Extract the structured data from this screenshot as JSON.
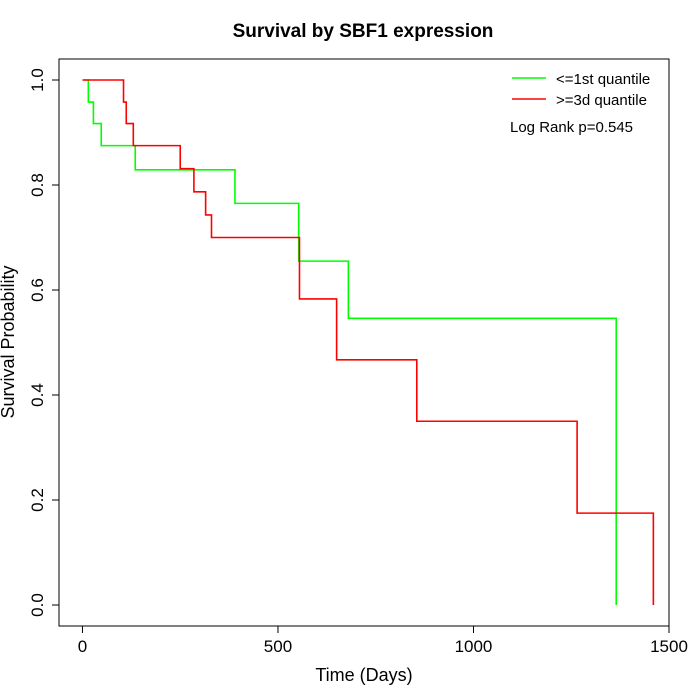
{
  "chart_data": {
    "type": "line",
    "step": true,
    "title": "Survival by SBF1 expression",
    "xlabel": "Time (Days)",
    "ylabel": "Survival Probability",
    "xlim": [
      -60,
      1500
    ],
    "ylim": [
      -0.04,
      1.04
    ],
    "xticks": [
      0,
      500,
      1000,
      1500
    ],
    "yticks": [
      0.0,
      0.2,
      0.4,
      0.6,
      0.8,
      1.0
    ],
    "xtick_labels": [
      "0",
      "500",
      "1000",
      "1500"
    ],
    "ytick_labels": [
      "0.0",
      "0.2",
      "0.4",
      "0.6",
      "0.8",
      "1.0"
    ],
    "grid": false,
    "legend_position": "top-right",
    "annotation": "Log Rank p=0.545",
    "series": [
      {
        "name": "<=1st quantile",
        "color": "#00ff00",
        "x": [
          5,
          15,
          28,
          48,
          135,
          390,
          553,
          680,
          1365
        ],
        "y": [
          1.0,
          0.958,
          0.917,
          0.875,
          0.829,
          0.765,
          0.655,
          0.546,
          0.0
        ]
      },
      {
        "name": ">=3d quantile",
        "color": "#ff0000",
        "x": [
          0,
          105,
          112,
          130,
          250,
          285,
          315,
          330,
          555,
          650,
          855,
          1265,
          1460
        ],
        "y": [
          1.0,
          0.958,
          0.917,
          0.875,
          0.831,
          0.787,
          0.743,
          0.7,
          0.583,
          0.467,
          0.35,
          0.175,
          0.0
        ]
      }
    ]
  }
}
